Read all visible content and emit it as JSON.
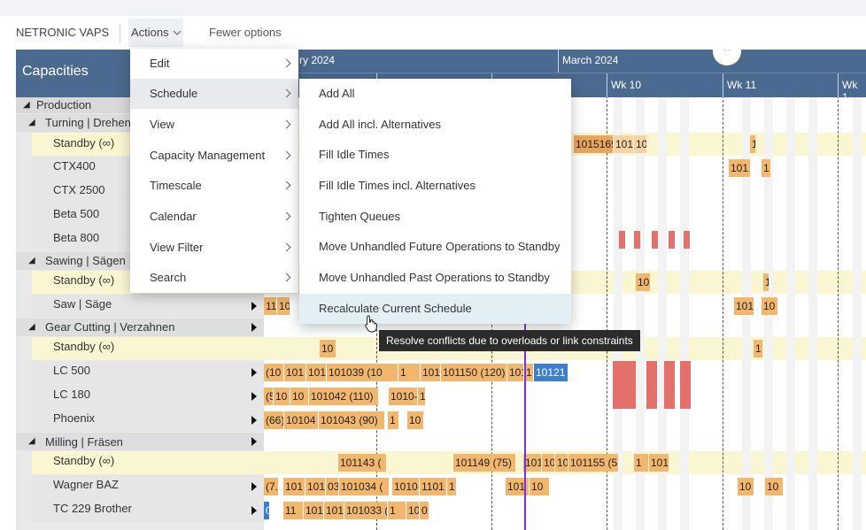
{
  "toolbar": {
    "app_name": "NETRONIC VAPS",
    "actions_label": "Actions",
    "fewer_options_label": "Fewer options"
  },
  "capacities": {
    "title": "Capacities",
    "rows": [
      {
        "label": "Production",
        "level": 0,
        "expand": "open"
      },
      {
        "label": "Turning | Drehen",
        "level": 1,
        "expand": "open"
      },
      {
        "label": "Standby (∞)",
        "level": 2,
        "standby": true
      },
      {
        "label": "CTX400",
        "level": 2
      },
      {
        "label": "CTX 2500",
        "level": 2
      },
      {
        "label": "Beta 500",
        "level": 2
      },
      {
        "label": "Beta 800",
        "level": 2
      },
      {
        "label": "Sawing | Sägen",
        "level": 1,
        "expand": "open"
      },
      {
        "label": "Standby (∞)",
        "level": 2,
        "standby": true
      },
      {
        "label": "Saw | Säge",
        "level": 2,
        "arrow": true
      },
      {
        "label": "Gear Cutting | Verzahnen",
        "level": 1,
        "arrow": true
      },
      {
        "label": "Standby (∞)",
        "level": 2,
        "standby": true
      },
      {
        "label": "LC 500",
        "level": 2,
        "arrow": true
      },
      {
        "label": "LC 180",
        "level": 2,
        "arrow": true
      },
      {
        "label": "Phoenix",
        "level": 2,
        "arrow": true
      },
      {
        "label": "Milling | Fräsen",
        "level": 1,
        "arrow": true
      },
      {
        "label": "Standby (∞)",
        "level": 2,
        "standby": true
      },
      {
        "label": "Wagner BAZ",
        "level": 2,
        "arrow": true
      },
      {
        "label": "TC 229 Brother",
        "level": 2,
        "arrow": true
      }
    ]
  },
  "timeline": {
    "months": [
      "ry 2024",
      "March 2024"
    ],
    "weeks": [
      "Wk 10",
      "Wk 11",
      "Wk 1"
    ]
  },
  "bars": {
    "standby1_a": "1015169",
    "standby1_b": "101",
    "standby1_c": "10",
    "standby1_d": "1",
    "ctx400_a": "101",
    "ctx400_b": "1",
    "sawstandby_a": "10",
    "sawstandby_b": "1",
    "saw_a": "11",
    "saw_b": "10",
    "saw_c": "101",
    "saw_d": "10",
    "gear_standby_a": "10",
    "gear_standby_b": "1",
    "lc500_a": "(10",
    "lc500_b": "101",
    "lc500_c": "101",
    "lc500_d": "101039 (10",
    "lc500_e": "1",
    "lc500_f": "101",
    "lc500_g": "101150 (120)",
    "lc500_h": "101",
    "lc500_i": "1",
    "lc500_blue": "10121",
    "lc180_a": "(5",
    "lc180_b": "10",
    "lc180_c": "10",
    "lc180_d": "101042 (110)",
    "lc180_e": "1010-",
    "lc180_f": "1",
    "phoenix_a": "(66)",
    "phoenix_b": "10104",
    "phoenix_c": "101043 (90)",
    "phoenix_d": "1",
    "phoenix_e": "10",
    "mill_standby_a": "101143 (",
    "mill_standby_b": "101149 (75)",
    "mill_standby_c": "101",
    "mill_standby_d": "10",
    "mill_standby_e": "10",
    "mill_standby_f": "101155 (5",
    "mill_standby_g": "1",
    "mill_standby_h": "101",
    "wagner_a": "(7.",
    "wagner_b": "101",
    "wagner_c": "101",
    "wagner_d": "03",
    "wagner_e": "101034 (",
    "wagner_f": "1010-",
    "wagner_g": "1101",
    "wagner_h": "1",
    "wagner_i": "101",
    "wagner_j": "10",
    "wagner_k": "10",
    "wagner_l": "10",
    "tc_a": "0",
    "tc_b": "11",
    "tc_c": "101",
    "tc_d": "101",
    "tc_e": "101033 (70",
    "tc_f": "1",
    "tc_g": "101",
    "tc_h": "01"
  },
  "actions_menu": {
    "items": [
      "Edit",
      "Schedule",
      "View",
      "Capacity Management",
      "Timescale",
      "Calendar",
      "View Filter",
      "Search"
    ],
    "selected": "Schedule"
  },
  "schedule_submenu": {
    "items": [
      "Add All",
      "Add All incl. Alternatives",
      "Fill Idle Times",
      "Fill Idle Times incl. Alternatives",
      "Tighten Queues",
      "Move Unhandled Future Operations to Standby",
      "Move Unhandled Past Operations to Standby",
      "Recalculate Current Schedule"
    ],
    "hovered": "Recalculate Current Schedule"
  },
  "tooltip": {
    "text": "Resolve conflicts due to overloads or link constraints"
  },
  "colors": {
    "header_blue": "#4b6a8f",
    "bar_orange": "#f3b66d",
    "conflict_red": "#e4706c",
    "selected_blue": "#3b7fd1",
    "current_time_line": "#7b2ee0",
    "standby_row": "#fbf6d2"
  }
}
